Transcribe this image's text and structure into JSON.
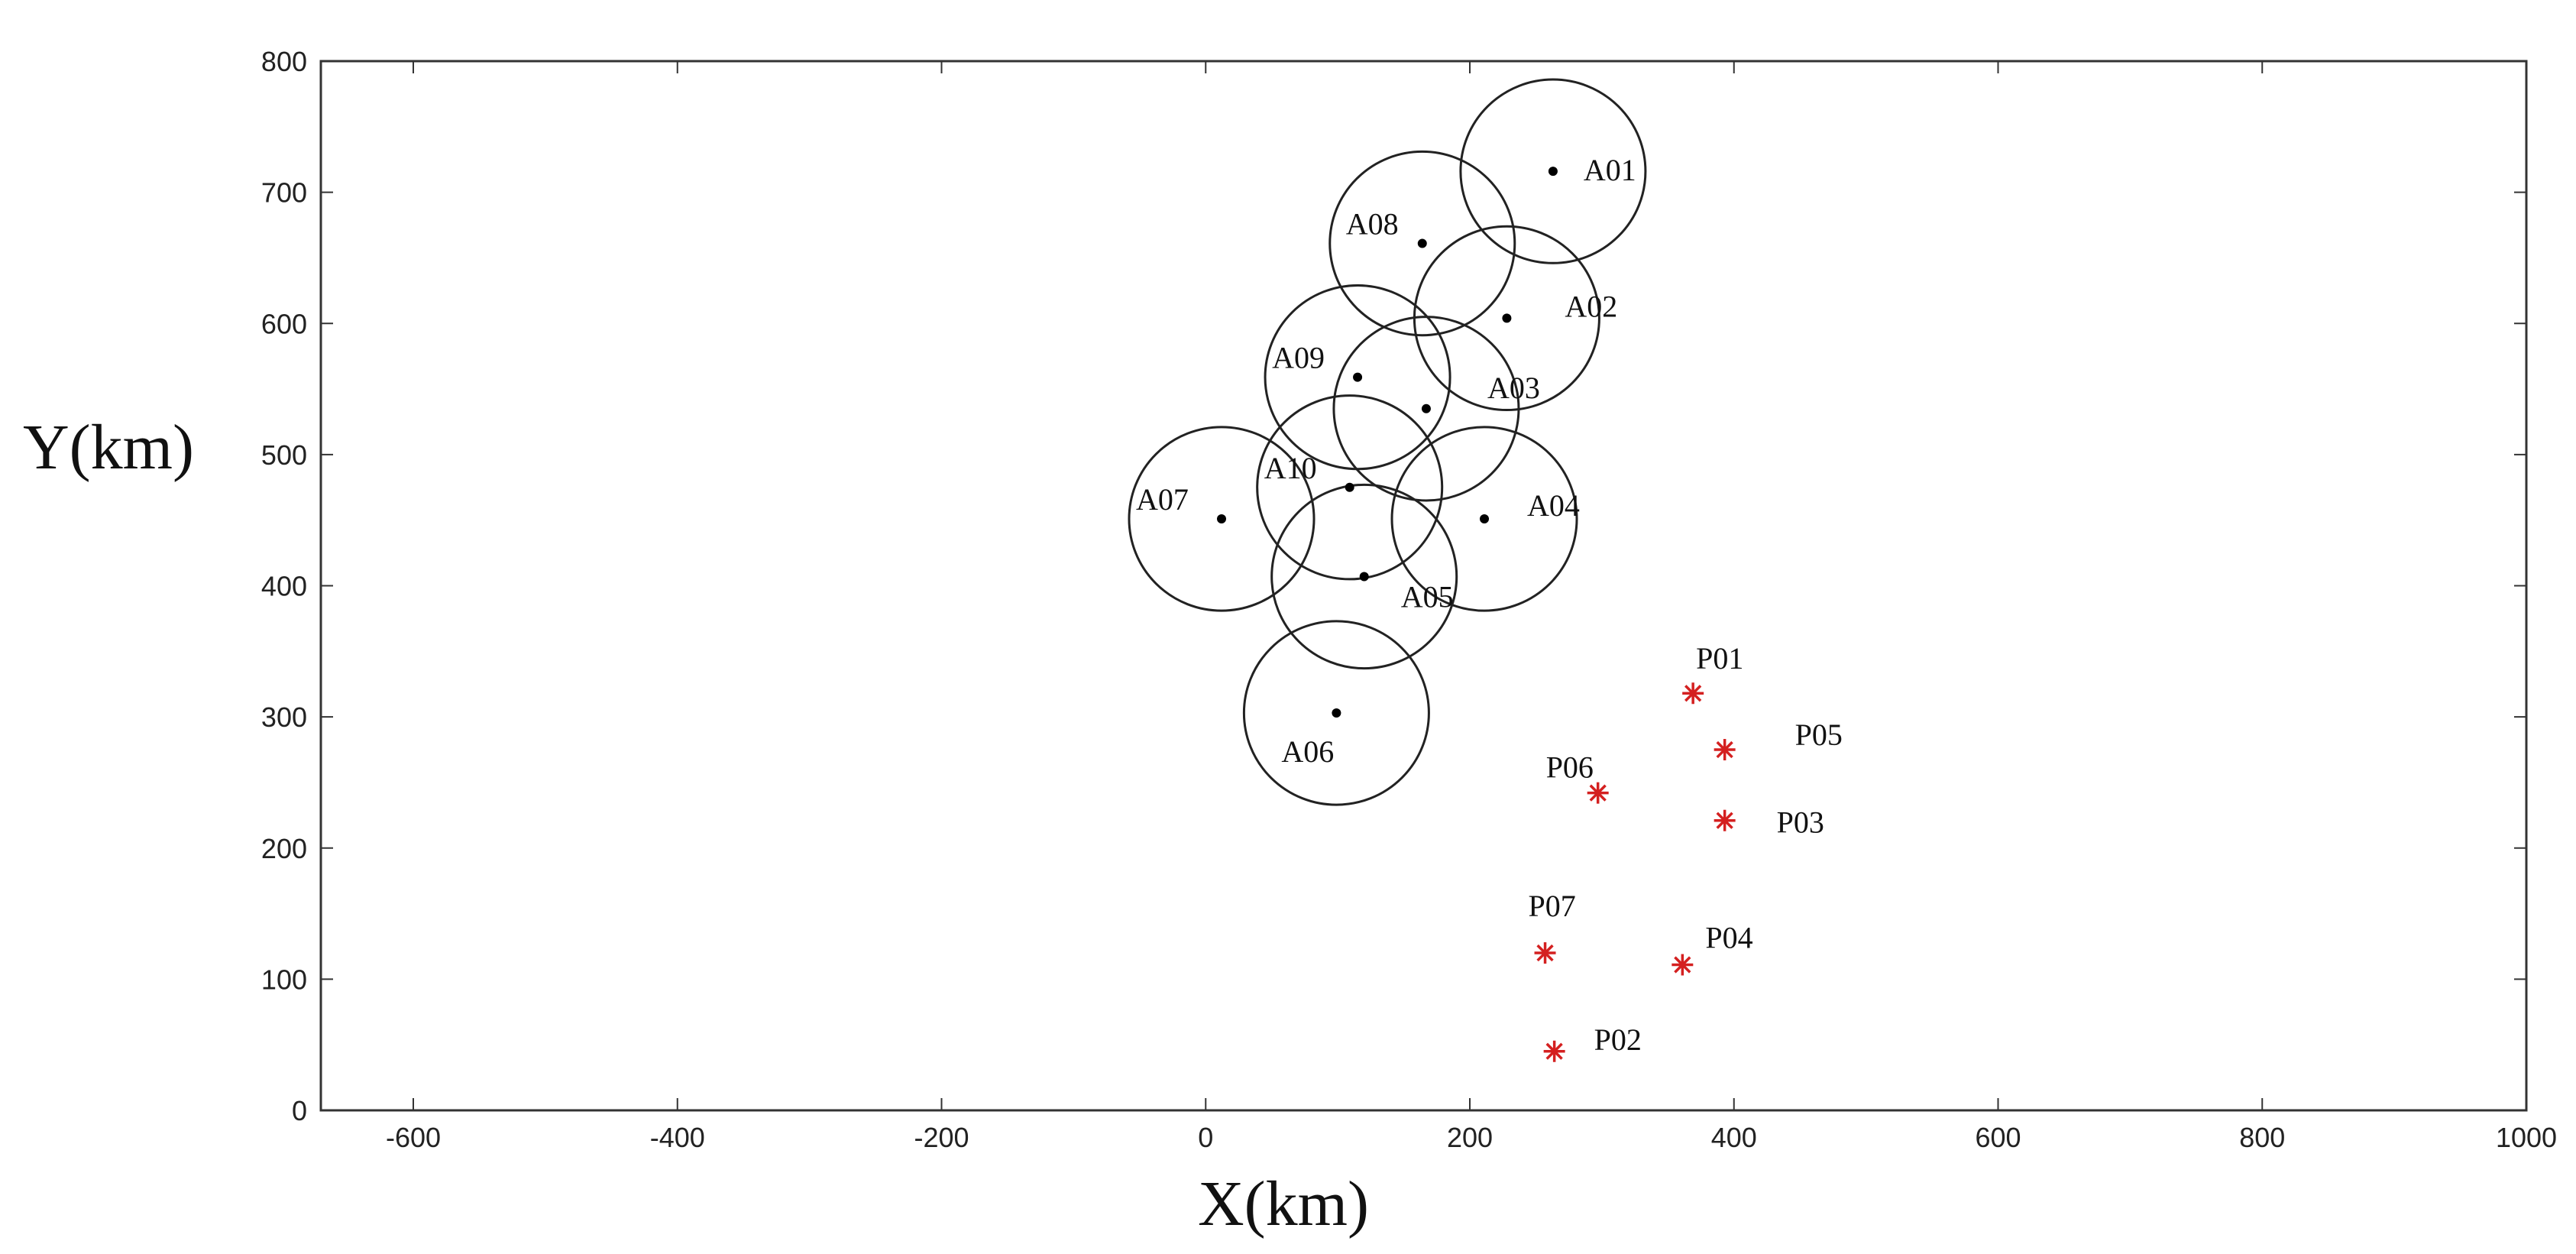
{
  "chart_data": {
    "type": "scatter",
    "title": "",
    "xlabel": "X(km)",
    "ylabel": "Y(km)",
    "xlim": [
      -670,
      1000
    ],
    "ylim": [
      0,
      800
    ],
    "x_ticks": [
      -600,
      -400,
      -200,
      0,
      200,
      400,
      600,
      800,
      1000
    ],
    "y_ticks": [
      0,
      100,
      200,
      300,
      400,
      500,
      600,
      700,
      800
    ],
    "x_tick_labels": [
      "-600",
      "-400",
      "-200",
      "0",
      "200",
      "400",
      "600",
      "800",
      "1000"
    ],
    "y_tick_labels": [
      "0",
      "100",
      "200",
      "300",
      "400",
      "500",
      "600",
      "700",
      "800"
    ],
    "grid": false,
    "circle_radius_km": 70,
    "series": [
      {
        "marker": "dot-with-circle",
        "color": "#000000",
        "points": [
          {
            "label": "A01",
            "x": 263,
            "y": 716
          },
          {
            "label": "A02",
            "x": 228,
            "y": 604
          },
          {
            "label": "A03",
            "x": 167,
            "y": 535
          },
          {
            "label": "A04",
            "x": 211,
            "y": 451
          },
          {
            "label": "A05",
            "x": 120,
            "y": 407
          },
          {
            "label": "A06",
            "x": 99,
            "y": 303
          },
          {
            "label": "A07",
            "x": 12,
            "y": 451
          },
          {
            "label": "A08",
            "x": 164,
            "y": 661
          },
          {
            "label": "A09",
            "x": 115,
            "y": 559
          },
          {
            "label": "A10",
            "x": 109,
            "y": 475
          }
        ]
      },
      {
        "marker": "asterisk",
        "color": "#d42020",
        "points": [
          {
            "label": "P01",
            "x": 369,
            "y": 318
          },
          {
            "label": "P02",
            "x": 264,
            "y": 45
          },
          {
            "label": "P03",
            "x": 393,
            "y": 221
          },
          {
            "label": "P04",
            "x": 361,
            "y": 111
          },
          {
            "label": "P05",
            "x": 393,
            "y": 275
          },
          {
            "label": "P06",
            "x": 297,
            "y": 242
          },
          {
            "label": "P07",
            "x": 257,
            "y": 120
          }
        ]
      }
    ]
  }
}
